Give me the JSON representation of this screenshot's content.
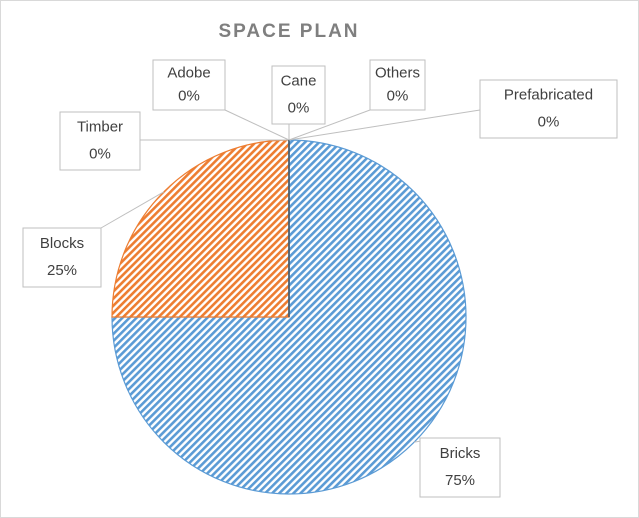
{
  "chart_data": {
    "type": "pie",
    "title": "SPACE PLAN",
    "categories": [
      "Bricks",
      "Blocks",
      "Timber",
      "Adobe",
      "Cane",
      "Others",
      "Prefabricated"
    ],
    "values": [
      75,
      25,
      0,
      0,
      0,
      0,
      0
    ],
    "value_labels": [
      "75%",
      "25%",
      "0%",
      "0%",
      "0%",
      "0%",
      "0%"
    ],
    "colors": [
      "#5b9bd5",
      "#ed7d31",
      "#a5a5a5",
      "#ffc000",
      "#4472c4",
      "#70ad47",
      "#264478"
    ]
  }
}
